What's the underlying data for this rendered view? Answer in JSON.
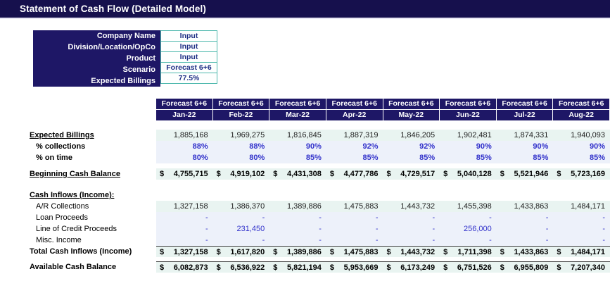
{
  "title": "Statement of Cash Flow (Detailed Model)",
  "form": {
    "rows": [
      {
        "label": "Company Name",
        "value": "Input"
      },
      {
        "label": "Division/Location/OpCo",
        "value": "Input"
      },
      {
        "label": "Product",
        "value": "Input"
      },
      {
        "label": "Scenario",
        "value": "Forecast 6+6"
      },
      {
        "label": "Expected Billings",
        "value": "77.5%"
      }
    ]
  },
  "colors": {
    "topbar": "#16104d",
    "header_navy": "#1e1766",
    "mint_row": "#e9f4f1",
    "lavender_row": "#edf1fa",
    "input_blue_text": "#3333cb",
    "teal_border": "#4cb8ac"
  },
  "table": {
    "columns": [
      {
        "scenario": "Forecast 6+6",
        "month": "Jan-22"
      },
      {
        "scenario": "Forecast 6+6",
        "month": "Feb-22"
      },
      {
        "scenario": "Forecast 6+6",
        "month": "Mar-22"
      },
      {
        "scenario": "Forecast 6+6",
        "month": "Apr-22"
      },
      {
        "scenario": "Forecast 6+6",
        "month": "May-22"
      },
      {
        "scenario": "Forecast 6+6",
        "month": "Jun-22"
      },
      {
        "scenario": "Forecast 6+6",
        "month": "Jul-22"
      },
      {
        "scenario": "Forecast 6+6",
        "month": "Aug-22"
      }
    ],
    "rows": [
      {
        "kind": "data",
        "label": "Expected Billings",
        "label_style": "underline",
        "cell_style": "mint",
        "values": [
          "1,885,168",
          "1,969,275",
          "1,816,845",
          "1,887,319",
          "1,846,205",
          "1,902,481",
          "1,874,331",
          "1,940,093"
        ]
      },
      {
        "kind": "data",
        "label": "% collections",
        "label_style": "indent-bold",
        "cell_style": "lavender pct",
        "values": [
          "88%",
          "88%",
          "90%",
          "92%",
          "92%",
          "90%",
          "90%",
          "90%"
        ]
      },
      {
        "kind": "data",
        "label": "% on time",
        "label_style": "indent-bold",
        "cell_style": "lavender pct",
        "values": [
          "80%",
          "80%",
          "85%",
          "85%",
          "85%",
          "85%",
          "85%",
          "85%"
        ]
      },
      {
        "kind": "spacer",
        "height": 7
      },
      {
        "kind": "data",
        "label": "Beginning Cash Balance",
        "label_style": "underline",
        "cell_style": "money",
        "dollar": "$",
        "values": [
          "4,755,715",
          "4,919,102",
          "4,431,308",
          "4,477,786",
          "4,729,517",
          "5,040,128",
          "5,521,946",
          "5,723,169"
        ]
      },
      {
        "kind": "spacer",
        "height": 14
      },
      {
        "kind": "data",
        "label": "Cash Inflows (Income):",
        "label_style": "underline",
        "cell_style": "none",
        "values": []
      },
      {
        "kind": "data",
        "label": "A/R Collections",
        "label_style": "indent",
        "cell_style": "mint",
        "values": [
          "1,327,158",
          "1,386,370",
          "1,389,886",
          "1,475,883",
          "1,443,732",
          "1,455,398",
          "1,433,863",
          "1,484,171"
        ]
      },
      {
        "kind": "data",
        "label": "Loan Proceeds",
        "label_style": "indent",
        "cell_style": "lavender",
        "values": [
          "-",
          "-",
          "-",
          "-",
          "-",
          "-",
          "-",
          "-"
        ]
      },
      {
        "kind": "data",
        "label": "Line of Credit Proceeds",
        "label_style": "indent",
        "cell_style": "lavender",
        "values": [
          "-",
          "231,450",
          "-",
          "-",
          "-",
          "256,000",
          "-",
          "-"
        ]
      },
      {
        "kind": "data",
        "label": "Misc. Income",
        "label_style": "indent",
        "cell_style": "lavender",
        "values": [
          "-",
          "-",
          "-",
          "-",
          "-",
          "-",
          "-",
          "-"
        ]
      },
      {
        "kind": "data",
        "label": "Total Cash Inflows (Income)",
        "label_style": "bold",
        "cell_style": "money topline",
        "dollar": "$",
        "values": [
          "1,327,158",
          "1,617,820",
          "1,389,886",
          "1,475,883",
          "1,443,732",
          "1,711,398",
          "1,433,863",
          "1,484,171"
        ]
      },
      {
        "kind": "spacer",
        "height": 6
      },
      {
        "kind": "data",
        "label": "Available Cash Balance",
        "label_style": "bold",
        "cell_style": "money topline",
        "dollar": "$",
        "values": [
          "6,082,873",
          "6,536,922",
          "5,821,194",
          "5,953,669",
          "6,173,249",
          "6,751,526",
          "6,955,809",
          "7,207,340"
        ]
      }
    ]
  }
}
